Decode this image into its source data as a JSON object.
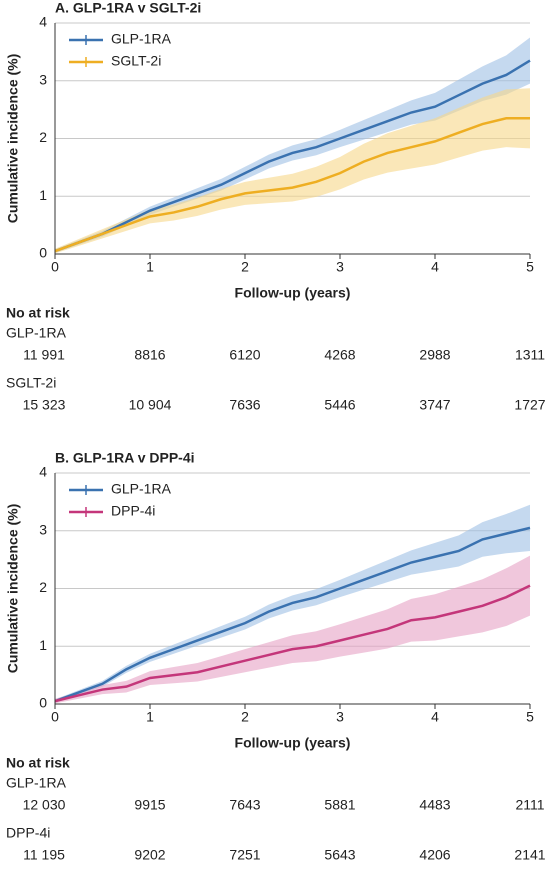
{
  "chart_data": [
    {
      "type": "line",
      "title": "A. GLP-1RA v SGLT-2i",
      "x_label": "Follow-up (years)",
      "y_label": "Cumulative incidence (%)",
      "x": [
        0,
        0.25,
        0.5,
        0.75,
        1,
        1.25,
        1.5,
        1.75,
        2,
        2.25,
        2.5,
        2.75,
        3,
        3.25,
        3.5,
        3.75,
        4,
        4.25,
        4.5,
        4.75,
        5
      ],
      "series": [
        {
          "name": "GLP-1RA",
          "color": "#3a72b0",
          "band_color": "#9fc0e4",
          "values": [
            0.05,
            0.2,
            0.35,
            0.55,
            0.75,
            0.9,
            1.05,
            1.2,
            1.4,
            1.6,
            1.75,
            1.85,
            2.0,
            2.15,
            2.3,
            2.45,
            2.55,
            2.75,
            2.95,
            3.1,
            3.35
          ],
          "lower": [
            0.02,
            0.16,
            0.3,
            0.49,
            0.68,
            0.82,
            0.96,
            1.1,
            1.29,
            1.48,
            1.62,
            1.71,
            1.85,
            1.98,
            2.11,
            2.24,
            2.31,
            2.48,
            2.65,
            2.76,
            2.95
          ],
          "upper": [
            0.08,
            0.24,
            0.4,
            0.61,
            0.82,
            0.98,
            1.14,
            1.3,
            1.51,
            1.72,
            1.88,
            1.99,
            2.15,
            2.32,
            2.49,
            2.66,
            2.79,
            3.02,
            3.25,
            3.44,
            3.75
          ]
        },
        {
          "name": "SGLT-2i",
          "color": "#eeae22",
          "band_color": "#f6d788",
          "values": [
            0.05,
            0.2,
            0.35,
            0.5,
            0.65,
            0.72,
            0.82,
            0.95,
            1.05,
            1.1,
            1.15,
            1.25,
            1.4,
            1.6,
            1.75,
            1.85,
            1.95,
            2.1,
            2.25,
            2.35,
            2.35
          ],
          "lower": [
            0.01,
            0.14,
            0.27,
            0.4,
            0.53,
            0.58,
            0.66,
            0.77,
            0.85,
            0.88,
            0.91,
            0.99,
            1.12,
            1.29,
            1.41,
            1.48,
            1.55,
            1.67,
            1.79,
            1.85,
            1.83
          ],
          "upper": [
            0.09,
            0.26,
            0.43,
            0.6,
            0.77,
            0.86,
            0.98,
            1.13,
            1.25,
            1.32,
            1.39,
            1.51,
            1.68,
            1.91,
            2.09,
            2.22,
            2.35,
            2.53,
            2.71,
            2.85,
            2.87
          ]
        }
      ],
      "xlim": [
        0,
        5
      ],
      "xticks": [
        0,
        1,
        2,
        3,
        4,
        5
      ],
      "ylim": [
        0,
        4
      ],
      "yticks": [
        0,
        1,
        2,
        3,
        4
      ],
      "grid": true,
      "legend": "upper left",
      "risk_table": {
        "title": "No at risk",
        "rows": [
          {
            "name": "GLP-1RA",
            "values": [
              {
                "value": 11991,
                "label": "11 991"
              },
              8816,
              6120,
              4268,
              2988,
              1311
            ]
          },
          {
            "name": "SGLT-2i",
            "values": [
              {
                "value": 15323,
                "label": "15 323"
              },
              {
                "value": 10904,
                "label": "10 904"
              },
              7636,
              5446,
              3747,
              1727
            ]
          }
        ]
      }
    },
    {
      "type": "line",
      "title": "B. GLP-1RA v DPP-4i",
      "x_label": "Follow-up (years)",
      "y_label": "Cumulative incidence (%)",
      "x": [
        0,
        0.25,
        0.5,
        0.75,
        1,
        1.25,
        1.5,
        1.75,
        2,
        2.25,
        2.5,
        2.75,
        3,
        3.25,
        3.5,
        3.75,
        4,
        4.25,
        4.5,
        4.75,
        5
      ],
      "series": [
        {
          "name": "GLP-1RA",
          "color": "#3a72b0",
          "band_color": "#9fc0e4",
          "values": [
            0.05,
            0.2,
            0.35,
            0.6,
            0.8,
            0.95,
            1.1,
            1.25,
            1.4,
            1.6,
            1.75,
            1.85,
            2.0,
            2.15,
            2.3,
            2.45,
            2.55,
            2.65,
            2.85,
            2.95,
            3.05
          ],
          "lower": [
            0.02,
            0.16,
            0.3,
            0.54,
            0.73,
            0.87,
            1.01,
            1.15,
            1.29,
            1.48,
            1.62,
            1.71,
            1.85,
            1.98,
            2.11,
            2.24,
            2.31,
            2.38,
            2.55,
            2.61,
            2.65
          ],
          "upper": [
            0.08,
            0.24,
            0.4,
            0.66,
            0.87,
            1.03,
            1.19,
            1.35,
            1.51,
            1.72,
            1.88,
            1.99,
            2.15,
            2.32,
            2.49,
            2.66,
            2.79,
            2.92,
            3.15,
            3.29,
            3.45
          ]
        },
        {
          "name": "DPP-4i",
          "color": "#c4367a",
          "band_color": "#e6a2c5",
          "values": [
            0.05,
            0.15,
            0.25,
            0.3,
            0.45,
            0.5,
            0.55,
            0.65,
            0.75,
            0.85,
            0.95,
            1.0,
            1.1,
            1.2,
            1.3,
            1.45,
            1.5,
            1.6,
            1.7,
            1.85,
            2.05
          ],
          "lower": [
            0.01,
            0.09,
            0.17,
            0.2,
            0.33,
            0.36,
            0.39,
            0.47,
            0.55,
            0.63,
            0.71,
            0.74,
            0.82,
            0.89,
            0.96,
            1.08,
            1.1,
            1.17,
            1.24,
            1.35,
            1.53
          ],
          "upper": [
            0.09,
            0.21,
            0.33,
            0.4,
            0.57,
            0.64,
            0.71,
            0.83,
            0.95,
            1.07,
            1.19,
            1.26,
            1.38,
            1.51,
            1.64,
            1.82,
            1.9,
            2.03,
            2.16,
            2.35,
            2.57
          ]
        }
      ],
      "xlim": [
        0,
        5
      ],
      "xticks": [
        0,
        1,
        2,
        3,
        4,
        5
      ],
      "ylim": [
        0,
        4
      ],
      "yticks": [
        0,
        1,
        2,
        3,
        4
      ],
      "grid": true,
      "legend": "upper left",
      "risk_table": {
        "title": "No at risk",
        "rows": [
          {
            "name": "GLP-1RA",
            "values": [
              {
                "value": 12030,
                "label": "12 030"
              },
              9915,
              7643,
              5881,
              4483,
              2111
            ]
          },
          {
            "name": "DPP-4i",
            "values": [
              {
                "value": 11195,
                "label": "11 195"
              },
              9202,
              7251,
              5643,
              4206,
              2141
            ]
          }
        ]
      }
    }
  ]
}
